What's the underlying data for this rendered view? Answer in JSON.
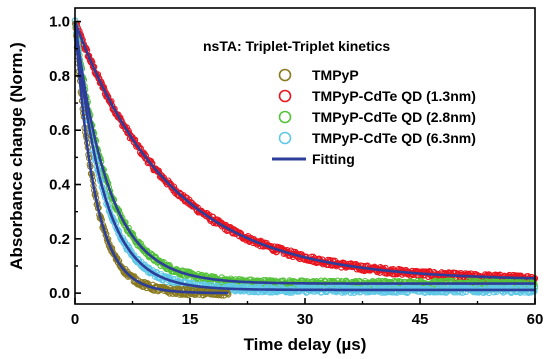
{
  "chart_data": {
    "type": "scatter",
    "title": "nsTA: Triplet-Triplet kinetics",
    "xlabel": "Time delay (µs)",
    "ylabel": "Absorbance change (Norm.)",
    "xlim": [
      0,
      60
    ],
    "ylim": [
      -0.04,
      1.05
    ],
    "x_ticks": [
      0,
      15,
      30,
      45,
      60
    ],
    "y_ticks": [
      0.0,
      0.2,
      0.4,
      0.6,
      0.8,
      1.0
    ],
    "grid": false,
    "legend_position": "top-right",
    "series": [
      {
        "name": "TMPyP",
        "color": "#8a7a1e",
        "marker": "open-circle",
        "model": {
          "tau": 2.6,
          "offset": 0.0,
          "tmax": 20
        },
        "x": [
          0,
          1,
          2,
          3,
          4,
          5,
          6,
          7,
          8,
          9,
          10,
          12,
          15,
          18,
          20
        ],
        "y": [
          1.0,
          0.68,
          0.46,
          0.31,
          0.21,
          0.15,
          0.1,
          0.07,
          0.05,
          0.03,
          0.02,
          0.01,
          0.0,
          0.0,
          0.0
        ]
      },
      {
        "name": "TMPyP-CdTe QD (1.3nm)",
        "color": "#e8141e",
        "marker": "open-circle",
        "model": {
          "tau": 12.4,
          "offset": 0.047,
          "tmax": 60
        },
        "x": [
          0,
          5,
          10,
          15,
          20,
          25,
          30,
          35,
          40,
          45,
          50,
          55,
          60
        ],
        "y": [
          1.0,
          0.7,
          0.47,
          0.32,
          0.22,
          0.16,
          0.11,
          0.09,
          0.07,
          0.06,
          0.055,
          0.05,
          0.05
        ]
      },
      {
        "name": "TMPyP-CdTe QD (2.8nm)",
        "color": "#55c23a",
        "marker": "open-circle",
        "model": {
          "tau": 4.4,
          "offset": 0.035,
          "tmax": 60
        },
        "x": [
          0,
          2,
          4,
          6,
          8,
          10,
          15,
          20,
          30,
          40,
          50,
          60
        ],
        "y": [
          1.0,
          0.65,
          0.43,
          0.28,
          0.2,
          0.14,
          0.08,
          0.06,
          0.045,
          0.04,
          0.035,
          0.035
        ]
      },
      {
        "name": "TMPyP-CdTe QD (6.3nm)",
        "color": "#5fc8e6",
        "marker": "open-circle",
        "model": {
          "tau": 3.7,
          "offset": 0.012,
          "tmax": 60
        },
        "x": [
          0,
          2,
          4,
          6,
          8,
          10,
          15,
          20,
          30,
          40,
          50,
          60
        ],
        "y": [
          1.0,
          0.59,
          0.35,
          0.21,
          0.13,
          0.08,
          0.03,
          0.02,
          0.015,
          0.012,
          0.012,
          0.012
        ]
      }
    ],
    "fit_series": {
      "name": "Fitting",
      "color": "#2c3e9a"
    }
  }
}
